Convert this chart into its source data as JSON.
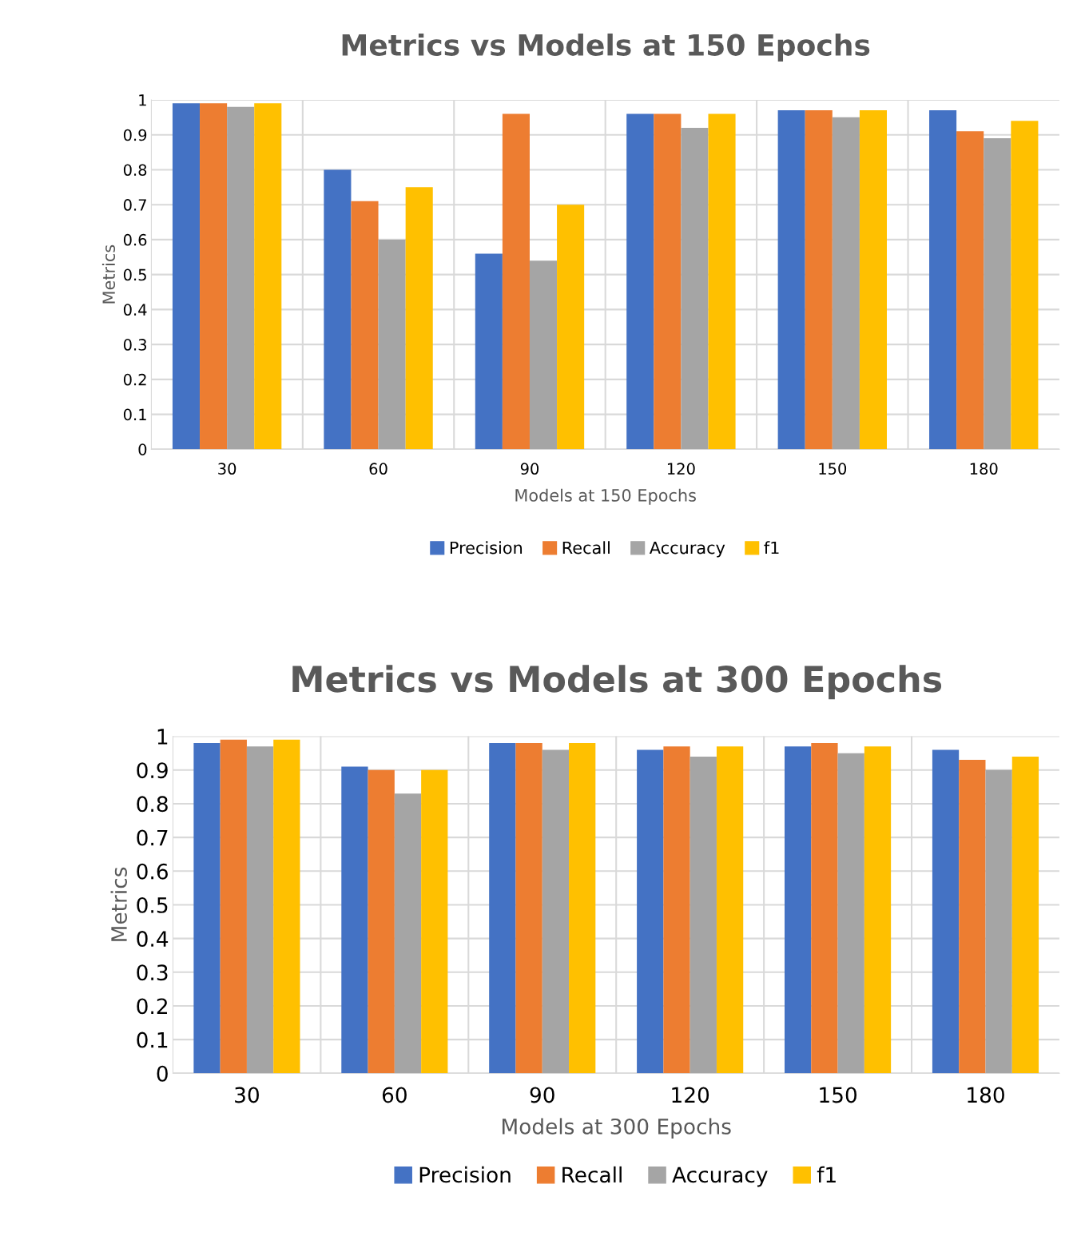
{
  "chart_data": [
    {
      "type": "bar",
      "title": "Metrics vs Models at 150 Epochs",
      "xlabel": "Models at 150 Epochs",
      "ylabel": "Metrics",
      "categories": [
        "30",
        "60",
        "90",
        "120",
        "150",
        "180"
      ],
      "series": [
        {
          "name": "Precision",
          "color": "#4472c4",
          "values": [
            0.99,
            0.8,
            0.56,
            0.96,
            0.97,
            0.97
          ]
        },
        {
          "name": "Recall",
          "color": "#ed7d31",
          "values": [
            0.99,
            0.71,
            0.96,
            0.96,
            0.97,
            0.91
          ]
        },
        {
          "name": "Accuracy",
          "color": "#a5a5a5",
          "values": [
            0.98,
            0.6,
            0.54,
            0.92,
            0.95,
            0.89
          ]
        },
        {
          "name": "f1",
          "color": "#ffc000",
          "values": [
            0.99,
            0.75,
            0.7,
            0.96,
            0.97,
            0.94
          ]
        }
      ],
      "ylim": [
        0,
        1
      ],
      "yticks": [
        0,
        0.1,
        0.2,
        0.3,
        0.4,
        0.5,
        0.6,
        0.7,
        0.8,
        0.9,
        1
      ],
      "grid": true,
      "legend": "bottom"
    },
    {
      "type": "bar",
      "title": "Metrics vs Models at 300 Epochs",
      "xlabel": "Models at 300 Epochs",
      "ylabel": "Metrics",
      "categories": [
        "30",
        "60",
        "90",
        "120",
        "150",
        "180"
      ],
      "series": [
        {
          "name": "Precision",
          "color": "#4472c4",
          "values": [
            0.98,
            0.91,
            0.98,
            0.96,
            0.97,
            0.96
          ]
        },
        {
          "name": "Recall",
          "color": "#ed7d31",
          "values": [
            0.99,
            0.9,
            0.98,
            0.97,
            0.98,
            0.93
          ]
        },
        {
          "name": "Accuracy",
          "color": "#a5a5a5",
          "values": [
            0.97,
            0.83,
            0.96,
            0.94,
            0.95,
            0.9
          ]
        },
        {
          "name": "f1",
          "color": "#ffc000",
          "values": [
            0.99,
            0.9,
            0.98,
            0.97,
            0.97,
            0.94
          ]
        }
      ],
      "ylim": [
        0,
        1
      ],
      "yticks": [
        0,
        0.1,
        0.2,
        0.3,
        0.4,
        0.5,
        0.6,
        0.7,
        0.8,
        0.9,
        1
      ],
      "grid": true,
      "legend": "bottom"
    }
  ]
}
